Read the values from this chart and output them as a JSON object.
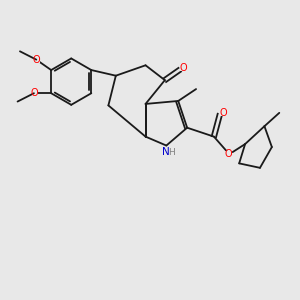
{
  "background_color": "#e8e8e8",
  "bond_color": "#1a1a1a",
  "atom_colors": {
    "O": "#ff0000",
    "N": "#0000cd",
    "C": "#1a1a1a",
    "H": "#808080"
  },
  "lw": 1.3
}
